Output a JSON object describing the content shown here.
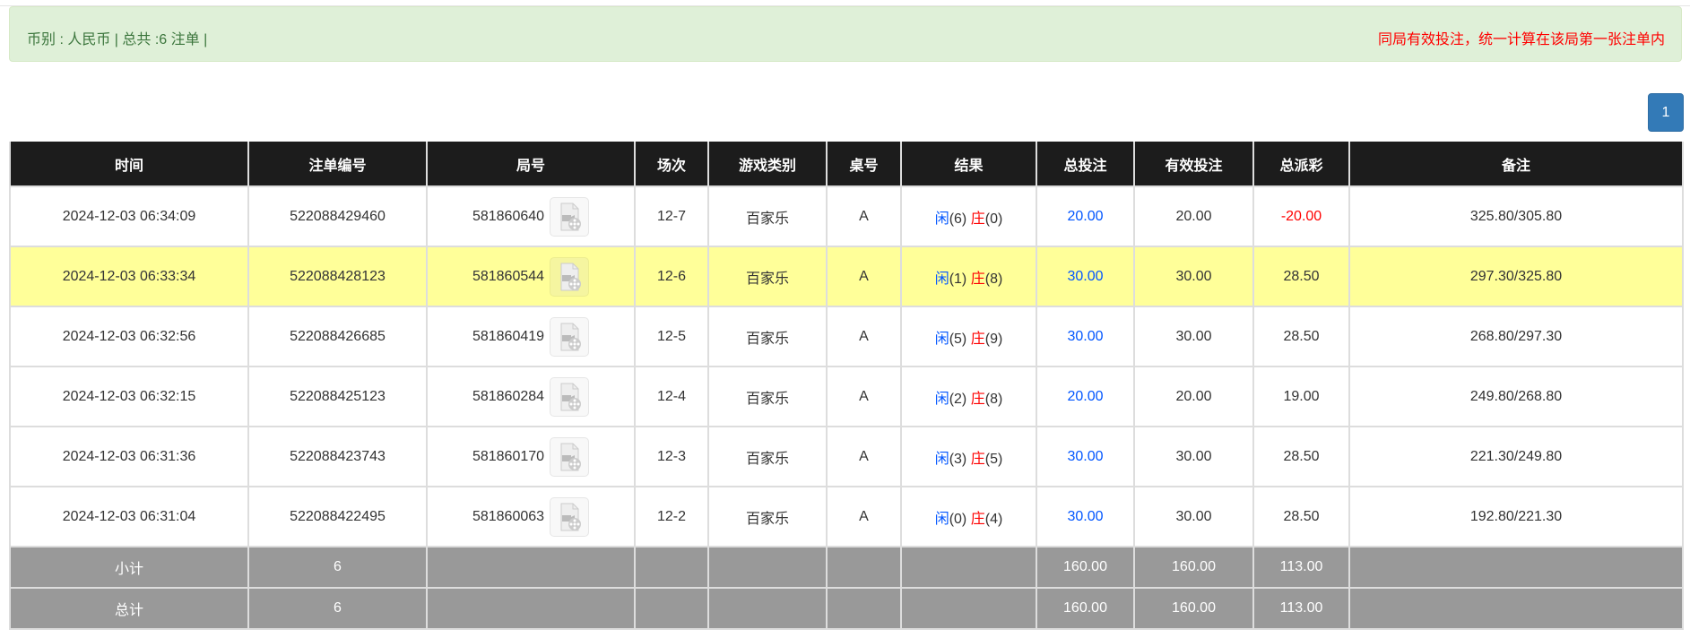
{
  "alert": {
    "summary": "币别 : 人民币 | 总共 :6 注单 |",
    "notice": "同局有效投注，统一计算在该局第一张注单内"
  },
  "pagination": {
    "current_page": "1"
  },
  "table": {
    "headers": [
      "时间",
      "注单编号",
      "局号",
      "场次",
      "游戏类别",
      "桌号",
      "结果",
      "总投注",
      "有效投注",
      "总派彩",
      "备注"
    ],
    "rows": [
      {
        "time": "2024-12-03 06:34:09",
        "bet_id": "522088429460",
        "round": "581860640",
        "session": "12-7",
        "game": "百家乐",
        "table": "A",
        "player_label": "闲",
        "player": "(6)",
        "banker_label": "庄",
        "banker": "(0)",
        "total_bet": "20.00",
        "valid_bet": "20.00",
        "payout": "-20.00",
        "note": "325.80/305.80",
        "highlight": false
      },
      {
        "time": "2024-12-03 06:33:34",
        "bet_id": "522088428123",
        "round": "581860544",
        "session": "12-6",
        "game": "百家乐",
        "table": "A",
        "player_label": "闲",
        "player": "(1)",
        "banker_label": "庄",
        "banker": "(8)",
        "total_bet": "30.00",
        "valid_bet": "30.00",
        "payout": "28.50",
        "note": "297.30/325.80",
        "highlight": true
      },
      {
        "time": "2024-12-03 06:32:56",
        "bet_id": "522088426685",
        "round": "581860419",
        "session": "12-5",
        "game": "百家乐",
        "table": "A",
        "player_label": "闲",
        "player": "(5)",
        "banker_label": "庄",
        "banker": "(9)",
        "total_bet": "30.00",
        "valid_bet": "30.00",
        "payout": "28.50",
        "note": "268.80/297.30",
        "highlight": false
      },
      {
        "time": "2024-12-03 06:32:15",
        "bet_id": "522088425123",
        "round": "581860284",
        "session": "12-4",
        "game": "百家乐",
        "table": "A",
        "player_label": "闲",
        "player": "(2)",
        "banker_label": "庄",
        "banker": "(8)",
        "total_bet": "20.00",
        "valid_bet": "20.00",
        "payout": "19.00",
        "note": "249.80/268.80",
        "highlight": false
      },
      {
        "time": "2024-12-03 06:31:36",
        "bet_id": "522088423743",
        "round": "581860170",
        "session": "12-3",
        "game": "百家乐",
        "table": "A",
        "player_label": "闲",
        "player": "(3)",
        "banker_label": "庄",
        "banker": "(5)",
        "total_bet": "30.00",
        "valid_bet": "30.00",
        "payout": "28.50",
        "note": "221.30/249.80",
        "highlight": false
      },
      {
        "time": "2024-12-03 06:31:04",
        "bet_id": "522088422495",
        "round": "581860063",
        "session": "12-2",
        "game": "百家乐",
        "table": "A",
        "player_label": "闲",
        "player": "(0)",
        "banker_label": "庄",
        "banker": "(4)",
        "total_bet": "30.00",
        "valid_bet": "30.00",
        "payout": "28.50",
        "note": "192.80/221.30",
        "highlight": false
      }
    ],
    "subtotal": {
      "label": "小计",
      "count": "6",
      "total_bet": "160.00",
      "valid_bet": "160.00",
      "payout": "113.00"
    },
    "total": {
      "label": "总计",
      "count": "6",
      "total_bet": "160.00",
      "valid_bet": "160.00",
      "payout": "113.00"
    }
  },
  "colors": {
    "header_bg": "#1c1c1c",
    "highlight_row": "#ffff99",
    "summary_bg": "#999999",
    "blue": "#0055ff",
    "red": "#ff0000",
    "alert_bg": "#dff0d8",
    "pager": "#337ab7"
  },
  "icons": {
    "replay": "video-file-icon"
  }
}
